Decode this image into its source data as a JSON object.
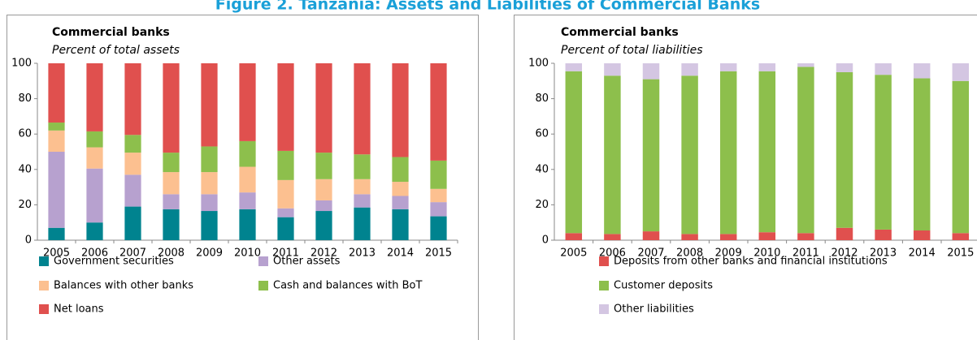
{
  "title": "Figure 2. Tanzania: Assets and Liabilities of Commercial Banks",
  "chart_data": [
    {
      "type": "stacked_bar",
      "title": "Commercial banks",
      "subtitle": "Percent of total assets",
      "categories": [
        "2005",
        "2006",
        "2007",
        "2008",
        "2009",
        "2010",
        "2011",
        "2012",
        "2013",
        "2014",
        "2015"
      ],
      "ylim": [
        0,
        100
      ],
      "yticks": [
        0,
        20,
        40,
        60,
        80,
        100
      ],
      "grid": false,
      "legend": "bottom",
      "series": [
        {
          "name": "Government securities",
          "color": "#00838f",
          "values": [
            7,
            10,
            19,
            17.5,
            16.5,
            17.5,
            13,
            16.5,
            18.5,
            17.5,
            13.5
          ]
        },
        {
          "name": "Other assets",
          "color": "#b7a1cf",
          "values": [
            43,
            30.5,
            18,
            8.5,
            9.5,
            9.5,
            5,
            6,
            7.5,
            7.5,
            8
          ]
        },
        {
          "name": "Balances with other banks",
          "color": "#fcc090",
          "values": [
            12,
            12,
            12.5,
            12.5,
            12.5,
            14.5,
            16,
            12,
            8.5,
            8,
            7.5
          ]
        },
        {
          "name": "Cash and balances with BoT",
          "color": "#8dbf4c",
          "values": [
            4.5,
            9,
            10,
            11,
            14.5,
            14.5,
            16.5,
            15,
            14,
            14,
            16
          ]
        },
        {
          "name": "Net loans",
          "color": "#e0504e",
          "values": [
            33.5,
            38.5,
            40.5,
            50.5,
            47,
            44,
            49.5,
            50.5,
            51.5,
            53,
            55
          ]
        }
      ]
    },
    {
      "type": "stacked_bar",
      "title": "Commercial banks",
      "subtitle": "Percent of total liabilities",
      "categories": [
        "2005",
        "2006",
        "2007",
        "2008",
        "2009",
        "2010",
        "2011",
        "2012",
        "2013",
        "2014",
        "2015"
      ],
      "ylim": [
        0,
        100
      ],
      "yticks": [
        0,
        20,
        40,
        60,
        80,
        100
      ],
      "grid": false,
      "legend": "bottom",
      "series": [
        {
          "name": "Deposits from other banks and financial institutions",
          "color": "#e0504e",
          "values": [
            4,
            3.5,
            5,
            3.5,
            3.5,
            4.5,
            4,
            7,
            6,
            5.5,
            4
          ]
        },
        {
          "name": "Customer deposits",
          "color": "#8dbf4c",
          "values": [
            91.5,
            89.5,
            86,
            89.5,
            92,
            91,
            94,
            88,
            87.5,
            86,
            86
          ]
        },
        {
          "name": "Other liabilities",
          "color": "#d4c6e2",
          "values": [
            4.5,
            7,
            9,
            7,
            4.5,
            4.5,
            2,
            5,
            6.5,
            8.5,
            10
          ]
        }
      ]
    }
  ]
}
